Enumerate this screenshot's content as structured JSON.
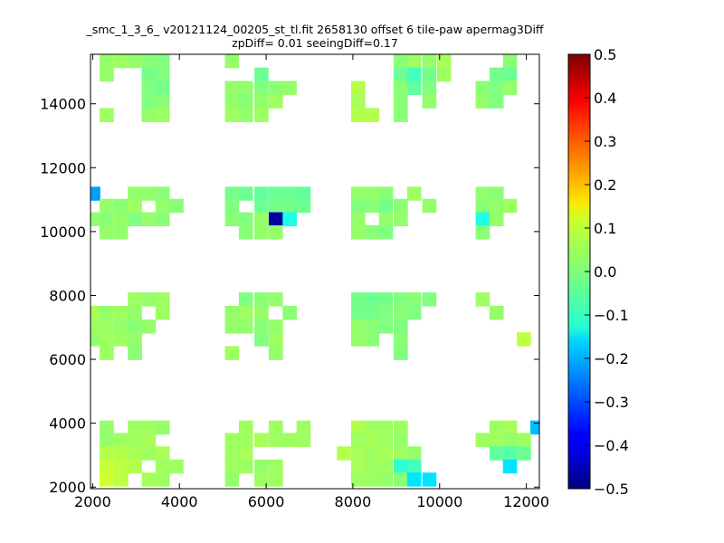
{
  "chart_data": {
    "type": "heatmap",
    "title": "_smc_1_3_6_ v20121124_00205_st_tl.fit 2658130 offset 6 tile-paw apermag3Diff",
    "subtitle": "zpDiff= 0.01 seeingDiff=0.17",
    "xlim": [
      1950,
      12300
    ],
    "ylim": [
      1950,
      15550
    ],
    "x_ticks": [
      "2000",
      "4000",
      "6000",
      "8000",
      "10000",
      "12000"
    ],
    "y_ticks": [
      "2000",
      "4000",
      "6000",
      "8000",
      "10000",
      "12000",
      "14000"
    ],
    "colorbar": {
      "range": [
        -0.5,
        0.5
      ],
      "ticks": [
        "0.5",
        "0.4",
        "0.3",
        "0.2",
        "0.1",
        "0.0",
        "−0.1",
        "−0.2",
        "−0.3",
        "−0.4",
        "−0.5"
      ],
      "colormap": "jet"
    },
    "cell_size": [
      320,
      430
    ],
    "cells": [
      [
        2320,
        15340,
        0.02
      ],
      [
        2650,
        15340,
        0.03
      ],
      [
        2970,
        15340,
        0.02
      ],
      [
        3290,
        15340,
        0.01
      ],
      [
        3610,
        15340,
        0.0
      ],
      [
        2320,
        14920,
        0.02
      ],
      [
        3290,
        14920,
        -0.01
      ],
      [
        3610,
        14920,
        0.0
      ],
      [
        3290,
        14500,
        0.0
      ],
      [
        3610,
        14500,
        -0.01
      ],
      [
        3290,
        14080,
        0.0
      ],
      [
        3610,
        14080,
        0.01
      ],
      [
        2320,
        13650,
        0.03
      ],
      [
        3290,
        13650,
        0.02
      ],
      [
        3610,
        13650,
        0.03
      ],
      [
        5210,
        15340,
        0.02
      ],
      [
        5890,
        14920,
        -0.02
      ],
      [
        5210,
        14500,
        0.02
      ],
      [
        5530,
        14500,
        0.02
      ],
      [
        5890,
        14500,
        0.0
      ],
      [
        6220,
        14500,
        0.01
      ],
      [
        6540,
        14500,
        0.02
      ],
      [
        5210,
        14080,
        0.02
      ],
      [
        5530,
        14080,
        0.01
      ],
      [
        5890,
        14080,
        0.02
      ],
      [
        6220,
        14080,
        0.03
      ],
      [
        5210,
        13650,
        0.03
      ],
      [
        5530,
        13650,
        0.02
      ],
      [
        5890,
        13650,
        0.03
      ],
      [
        8120,
        14500,
        0.05
      ],
      [
        8120,
        14080,
        0.04
      ],
      [
        8120,
        13650,
        0.05
      ],
      [
        8440,
        13650,
        0.05
      ],
      [
        9100,
        15340,
        0.01
      ],
      [
        9410,
        15340,
        0.03
      ],
      [
        9760,
        15340,
        0.02
      ],
      [
        10100,
        15340,
        0.04
      ],
      [
        9100,
        14920,
        -0.02
      ],
      [
        9410,
        14920,
        -0.06
      ],
      [
        9760,
        14920,
        -0.01
      ],
      [
        10100,
        14920,
        0.03
      ],
      [
        9100,
        14500,
        0.01
      ],
      [
        9410,
        14500,
        -0.03
      ],
      [
        9760,
        14500,
        0.0
      ],
      [
        9100,
        14080,
        0.01
      ],
      [
        9760,
        14080,
        0.02
      ],
      [
        9100,
        13650,
        0.01
      ],
      [
        11620,
        15340,
        0.01
      ],
      [
        11310,
        14920,
        -0.01
      ],
      [
        11620,
        14920,
        -0.02
      ],
      [
        10990,
        14500,
        0.01
      ],
      [
        11310,
        14500,
        0.0
      ],
      [
        11620,
        14500,
        0.02
      ],
      [
        10990,
        14080,
        0.02
      ],
      [
        11310,
        14080,
        0.0
      ],
      [
        2010,
        11190,
        -0.22
      ],
      [
        2970,
        11190,
        0.02
      ],
      [
        3290,
        11190,
        0.02
      ],
      [
        3610,
        11190,
        0.01
      ],
      [
        2320,
        10810,
        0.02
      ],
      [
        2650,
        10810,
        0.01
      ],
      [
        2970,
        10810,
        0.03
      ],
      [
        3610,
        10810,
        0.02
      ],
      [
        3930,
        10810,
        0.01
      ],
      [
        2010,
        10390,
        0.02
      ],
      [
        2320,
        10390,
        0.01
      ],
      [
        2650,
        10390,
        0.02
      ],
      [
        2970,
        10390,
        0.0
      ],
      [
        3290,
        10390,
        0.02
      ],
      [
        3610,
        10390,
        0.01
      ],
      [
        2320,
        9980,
        0.02
      ],
      [
        2650,
        9980,
        0.02
      ],
      [
        5210,
        11190,
        -0.01
      ],
      [
        5530,
        11190,
        -0.02
      ],
      [
        5890,
        11190,
        -0.03
      ],
      [
        6220,
        11190,
        -0.02
      ],
      [
        6540,
        11190,
        -0.02
      ],
      [
        6860,
        11190,
        -0.03
      ],
      [
        5210,
        10810,
        0.0
      ],
      [
        5890,
        10810,
        -0.02
      ],
      [
        6220,
        10810,
        -0.01
      ],
      [
        6540,
        10810,
        -0.01
      ],
      [
        6860,
        10810,
        -0.02
      ],
      [
        5210,
        10390,
        0.01
      ],
      [
        5530,
        10390,
        0.0
      ],
      [
        5890,
        10390,
        0.02
      ],
      [
        6220,
        10390,
        -0.47
      ],
      [
        6540,
        10390,
        -0.1
      ],
      [
        5530,
        9980,
        0.01
      ],
      [
        5890,
        9980,
        0.02
      ],
      [
        6220,
        9980,
        0.02
      ],
      [
        8120,
        11190,
        0.02
      ],
      [
        8440,
        11190,
        0.02
      ],
      [
        8760,
        11190,
        0.01
      ],
      [
        9410,
        11190,
        0.03
      ],
      [
        8120,
        10810,
        0.0
      ],
      [
        8440,
        10810,
        0.01
      ],
      [
        8760,
        10810,
        -0.01
      ],
      [
        9100,
        10810,
        0.01
      ],
      [
        9760,
        10810,
        0.02
      ],
      [
        8120,
        10390,
        0.02
      ],
      [
        8760,
        10390,
        0.02
      ],
      [
        9100,
        10390,
        0.02
      ],
      [
        8120,
        9980,
        0.02
      ],
      [
        8440,
        9980,
        0.01
      ],
      [
        8760,
        9980,
        0.0
      ],
      [
        10990,
        11190,
        0.02
      ],
      [
        11310,
        11190,
        0.01
      ],
      [
        10990,
        10810,
        0.01
      ],
      [
        11310,
        10810,
        0.02
      ],
      [
        11620,
        10810,
        0.03
      ],
      [
        10990,
        10390,
        -0.1
      ],
      [
        11310,
        10390,
        0.02
      ],
      [
        10990,
        9980,
        0.01
      ],
      [
        2970,
        7880,
        0.03
      ],
      [
        3290,
        7880,
        0.02
      ],
      [
        3610,
        7880,
        0.03
      ],
      [
        2010,
        7460,
        0.04
      ],
      [
        2320,
        7460,
        0.02
      ],
      [
        2650,
        7460,
        0.03
      ],
      [
        2970,
        7460,
        0.02
      ],
      [
        3610,
        7460,
        0.03
      ],
      [
        2010,
        7030,
        0.03
      ],
      [
        2320,
        7030,
        0.03
      ],
      [
        2650,
        7030,
        0.02
      ],
      [
        2970,
        7030,
        0.01
      ],
      [
        3290,
        7030,
        0.02
      ],
      [
        2010,
        6630,
        0.02
      ],
      [
        2320,
        6630,
        0.03
      ],
      [
        2650,
        6630,
        0.03
      ],
      [
        2970,
        6630,
        0.02
      ],
      [
        2320,
        6200,
        0.03
      ],
      [
        2970,
        6200,
        0.01
      ],
      [
        5530,
        7880,
        0.0
      ],
      [
        5890,
        7880,
        0.01
      ],
      [
        6220,
        7880,
        0.02
      ],
      [
        5210,
        7460,
        0.02
      ],
      [
        5530,
        7460,
        0.03
      ],
      [
        5890,
        7460,
        0.02
      ],
      [
        6540,
        7460,
        0.01
      ],
      [
        5210,
        7030,
        0.02
      ],
      [
        5530,
        7030,
        0.02
      ],
      [
        5890,
        7030,
        0.01
      ],
      [
        6220,
        7030,
        0.02
      ],
      [
        5890,
        6630,
        0.0
      ],
      [
        6220,
        6630,
        0.03
      ],
      [
        5210,
        6200,
        0.03
      ],
      [
        6220,
        6200,
        0.02
      ],
      [
        8120,
        7880,
        -0.01
      ],
      [
        8440,
        7880,
        -0.02
      ],
      [
        8760,
        7880,
        -0.01
      ],
      [
        9100,
        7880,
        0.0
      ],
      [
        9410,
        7880,
        0.01
      ],
      [
        9760,
        7880,
        0.0
      ],
      [
        8120,
        7460,
        -0.01
      ],
      [
        8440,
        7460,
        -0.01
      ],
      [
        8760,
        7460,
        0.0
      ],
      [
        9100,
        7460,
        0.01
      ],
      [
        9410,
        7460,
        0.0
      ],
      [
        8120,
        7030,
        0.02
      ],
      [
        8440,
        7030,
        0.01
      ],
      [
        8760,
        7030,
        0.0
      ],
      [
        9100,
        7030,
        0.0
      ],
      [
        8120,
        6630,
        0.02
      ],
      [
        8440,
        6630,
        0.01
      ],
      [
        9100,
        6630,
        0.01
      ],
      [
        9100,
        6200,
        0.0
      ],
      [
        10990,
        7880,
        0.03
      ],
      [
        11310,
        7460,
        0.02
      ],
      [
        11940,
        6630,
        0.06
      ],
      [
        2320,
        3870,
        0.02
      ],
      [
        2970,
        3870,
        0.03
      ],
      [
        3290,
        3870,
        0.03
      ],
      [
        3610,
        3870,
        0.02
      ],
      [
        2320,
        3480,
        0.02
      ],
      [
        2650,
        3480,
        0.03
      ],
      [
        2970,
        3480,
        0.03
      ],
      [
        3290,
        3480,
        0.04
      ],
      [
        2320,
        3060,
        0.05
      ],
      [
        2650,
        3060,
        0.05
      ],
      [
        2970,
        3060,
        0.04
      ],
      [
        3290,
        3060,
        0.03
      ],
      [
        3610,
        3060,
        0.04
      ],
      [
        2320,
        2650,
        0.07
      ],
      [
        2650,
        2650,
        0.06
      ],
      [
        2970,
        2650,
        0.05
      ],
      [
        3610,
        2650,
        0.03
      ],
      [
        3930,
        2650,
        0.03
      ],
      [
        2320,
        2240,
        0.08
      ],
      [
        2650,
        2240,
        0.06
      ],
      [
        3290,
        2240,
        0.04
      ],
      [
        3610,
        2240,
        0.03
      ],
      [
        5530,
        3870,
        0.03
      ],
      [
        6220,
        3870,
        0.03
      ],
      [
        6860,
        3870,
        0.03
      ],
      [
        5210,
        3480,
        0.03
      ],
      [
        5530,
        3480,
        0.03
      ],
      [
        5890,
        3480,
        0.04
      ],
      [
        6220,
        3480,
        0.03
      ],
      [
        6540,
        3480,
        0.03
      ],
      [
        6860,
        3480,
        0.03
      ],
      [
        5210,
        3060,
        0.03
      ],
      [
        5530,
        3060,
        0.04
      ],
      [
        5210,
        2650,
        0.03
      ],
      [
        5530,
        2650,
        0.03
      ],
      [
        5890,
        2650,
        0.02
      ],
      [
        6220,
        2650,
        0.03
      ],
      [
        5210,
        2240,
        0.02
      ],
      [
        5890,
        2240,
        0.03
      ],
      [
        6220,
        2240,
        0.03
      ],
      [
        8120,
        3870,
        0.05
      ],
      [
        8440,
        3870,
        0.03
      ],
      [
        8760,
        3870,
        0.03
      ],
      [
        9100,
        3870,
        0.03
      ],
      [
        8120,
        3480,
        0.03
      ],
      [
        8440,
        3480,
        0.04
      ],
      [
        8760,
        3480,
        0.03
      ],
      [
        9100,
        3480,
        0.02
      ],
      [
        7790,
        3060,
        0.05
      ],
      [
        8120,
        3060,
        0.04
      ],
      [
        8440,
        3060,
        0.03
      ],
      [
        8760,
        3060,
        0.04
      ],
      [
        9100,
        3060,
        0.03
      ],
      [
        9410,
        3060,
        0.02
      ],
      [
        8120,
        2650,
        0.04
      ],
      [
        8440,
        2650,
        0.03
      ],
      [
        8760,
        2650,
        0.03
      ],
      [
        9100,
        2650,
        -0.08
      ],
      [
        9410,
        2650,
        -0.06
      ],
      [
        8120,
        2240,
        0.03
      ],
      [
        8440,
        2240,
        0.03
      ],
      [
        8760,
        2240,
        0.02
      ],
      [
        9100,
        2240,
        0.01
      ],
      [
        9410,
        2240,
        -0.15
      ],
      [
        9760,
        2240,
        -0.15
      ],
      [
        11310,
        3870,
        0.03
      ],
      [
        11620,
        3870,
        0.04
      ],
      [
        12250,
        3870,
        -0.19
      ],
      [
        10990,
        3480,
        0.03
      ],
      [
        11310,
        3480,
        0.03
      ],
      [
        11620,
        3480,
        0.02
      ],
      [
        11940,
        3480,
        0.03
      ],
      [
        11310,
        3060,
        -0.03
      ],
      [
        11620,
        3060,
        -0.04
      ],
      [
        11940,
        3060,
        -0.02
      ],
      [
        11620,
        2650,
        -0.15
      ]
    ]
  }
}
